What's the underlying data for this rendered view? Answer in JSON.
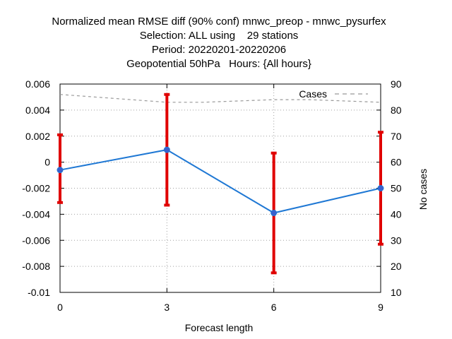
{
  "chart_data": {
    "type": "line",
    "title_lines": [
      "Normalized mean RMSE diff (90% conf) mnwc_preop - mnwc_pysurfex",
      "Selection: ALL using    29 stations",
      "Period: 20220201-20220206",
      "Geopotential 50hPa   Hours: {All hours}"
    ],
    "xlabel": "Forecast length",
    "ylabel": "",
    "y2label": "No cases",
    "x": [
      0,
      3,
      6,
      9
    ],
    "xticks": [
      "0",
      "3",
      "6",
      "9"
    ],
    "xlim": [
      0,
      9
    ],
    "ylim": [
      -0.01,
      0.006
    ],
    "yticks": [
      "0.006",
      "0.004",
      "0.002",
      "0",
      "-0.002",
      "-0.004",
      "-0.006",
      "-0.008",
      "-0.01"
    ],
    "ytick_values": [
      0.006,
      0.004,
      0.002,
      0,
      -0.002,
      -0.004,
      -0.006,
      -0.008,
      -0.01
    ],
    "y2lim": [
      10,
      90
    ],
    "y2ticks": [
      "90",
      "80",
      "70",
      "60",
      "50",
      "40",
      "30",
      "20",
      "10"
    ],
    "y2tick_values": [
      90,
      80,
      70,
      60,
      50,
      40,
      30,
      20,
      10
    ],
    "grid": true,
    "legend_position": "top-right",
    "series": [
      {
        "values": [
          -0.0006,
          0.00095,
          -0.0039,
          -0.002
        ],
        "err_low": [
          -0.0031,
          -0.0033,
          -0.0085,
          -0.0063
        ],
        "err_high": [
          0.0021,
          0.0052,
          0.0007,
          0.0023
        ],
        "color": "#1f78d4",
        "marker_color": "#3a5fcd",
        "error_color": "#e00000"
      },
      {
        "name": "Cases",
        "axis": "y2",
        "x": [
          0,
          1,
          2,
          3,
          4,
          5,
          6,
          7,
          8,
          9
        ],
        "values": [
          86,
          85,
          84,
          83,
          83,
          83.5,
          84,
          84,
          83.5,
          83
        ],
        "color": "#999999",
        "dashed": true
      }
    ]
  }
}
